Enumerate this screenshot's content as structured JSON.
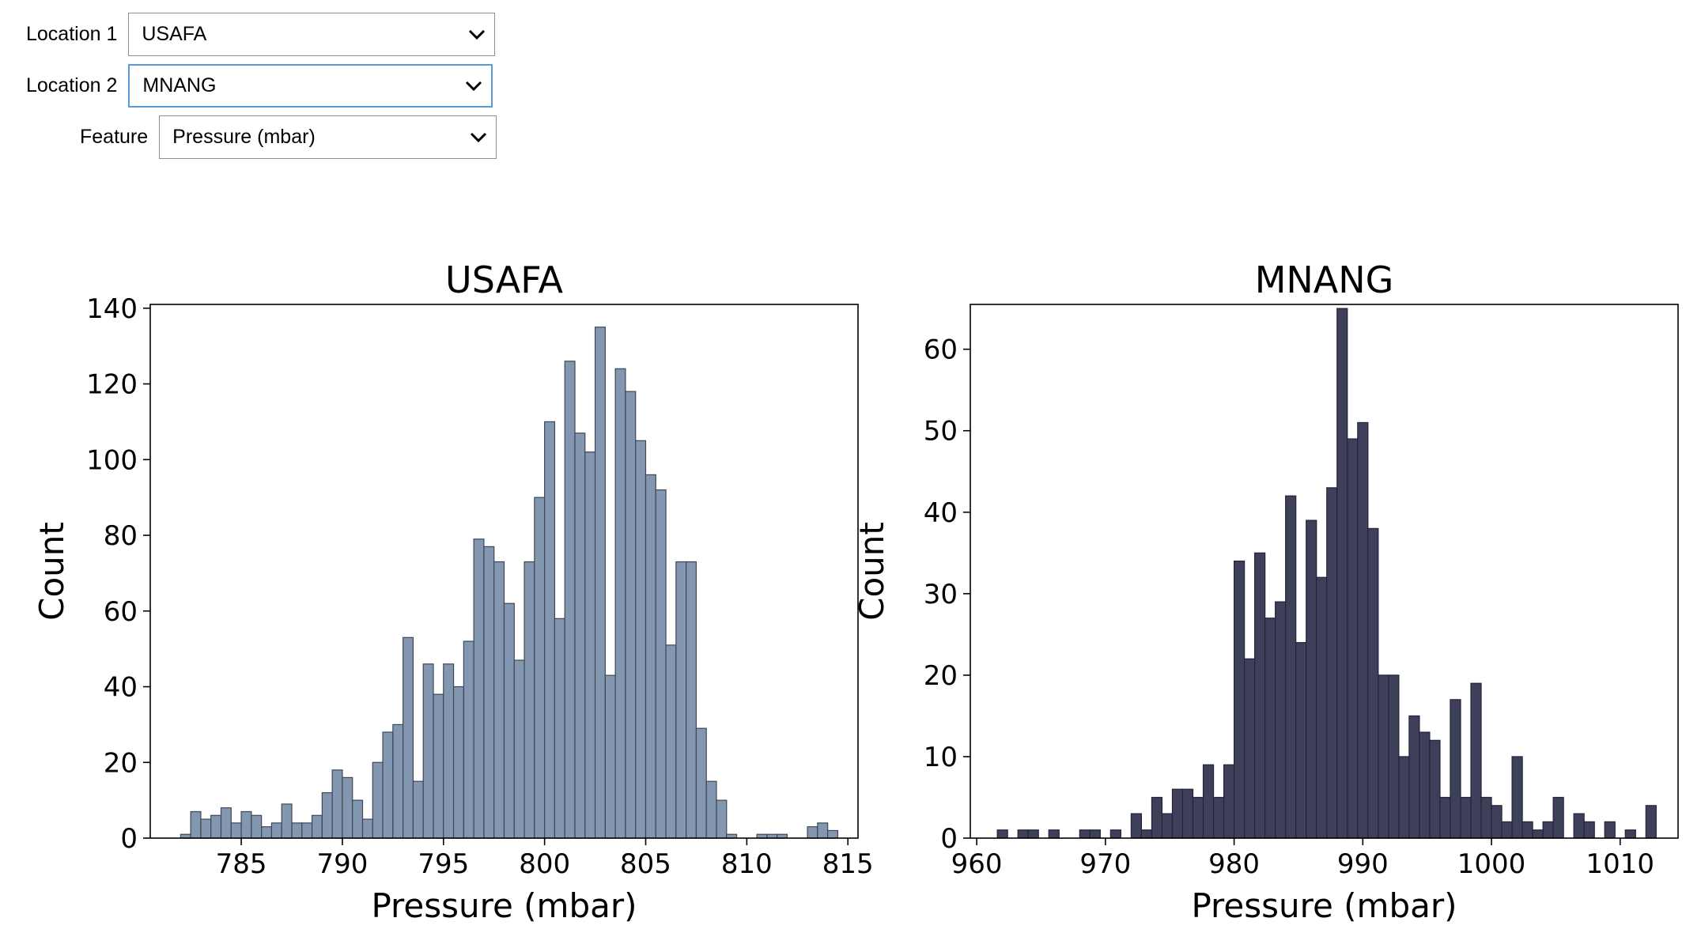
{
  "controls": {
    "location1": {
      "label": "Location 1",
      "value": "USAFA"
    },
    "location2": {
      "label": "Location 2",
      "value": "MNANG"
    },
    "feature": {
      "label": "Feature",
      "value": "Pressure (mbar)"
    }
  },
  "chart_data": [
    {
      "type": "bar",
      "title": "USAFA",
      "xlabel": "Pressure (mbar)",
      "ylabel": "Count",
      "xlim": [
        780.5,
        815.5
      ],
      "ylim": [
        0,
        141
      ],
      "xticks": [
        785,
        790,
        795,
        800,
        805,
        810,
        815
      ],
      "yticks": [
        0,
        20,
        40,
        60,
        80,
        100,
        120,
        140
      ],
      "bin_start": 782.0,
      "bin_width": 0.5,
      "values": [
        1,
        7,
        5,
        6,
        8,
        4,
        7,
        6,
        3,
        4,
        9,
        4,
        4,
        6,
        12,
        18,
        16,
        10,
        5,
        20,
        28,
        30,
        53,
        15,
        46,
        38,
        46,
        40,
        52,
        79,
        77,
        73,
        62,
        47,
        73,
        90,
        110,
        58,
        126,
        107,
        102,
        135,
        43,
        124,
        118,
        105,
        96,
        92,
        51,
        73,
        73,
        29,
        15,
        10,
        1,
        0,
        0,
        1,
        1,
        1,
        0,
        0,
        3,
        4,
        2
      ],
      "bar_color": "#8497b0",
      "edge_color": "#3e4658"
    },
    {
      "type": "bar",
      "title": "MNANG",
      "xlabel": "Pressure (mbar)",
      "ylabel": "Count",
      "xlim": [
        959.5,
        1014.5
      ],
      "ylim": [
        0,
        65.5
      ],
      "xticks": [
        960,
        970,
        980,
        990,
        1000,
        1010
      ],
      "yticks": [
        0,
        10,
        20,
        30,
        40,
        50,
        60
      ],
      "bin_start": 960.8,
      "bin_width": 0.8,
      "values": [
        0,
        1,
        0,
        1,
        1,
        0,
        1,
        0,
        0,
        1,
        1,
        0,
        1,
        0,
        3,
        1,
        5,
        3,
        6,
        6,
        5,
        9,
        5,
        9,
        34,
        22,
        35,
        27,
        29,
        42,
        24,
        39,
        32,
        43,
        65,
        49,
        51,
        38,
        20,
        20,
        10,
        15,
        13,
        12,
        5,
        17,
        5,
        19,
        5,
        4,
        2,
        10,
        2,
        1,
        2,
        5,
        0,
        3,
        2,
        0,
        2,
        0,
        1,
        0,
        4
      ],
      "bar_color": "#3e3f59",
      "edge_color": "#23243a"
    }
  ],
  "icons": {
    "dropdown": "chevron-down-icon"
  }
}
